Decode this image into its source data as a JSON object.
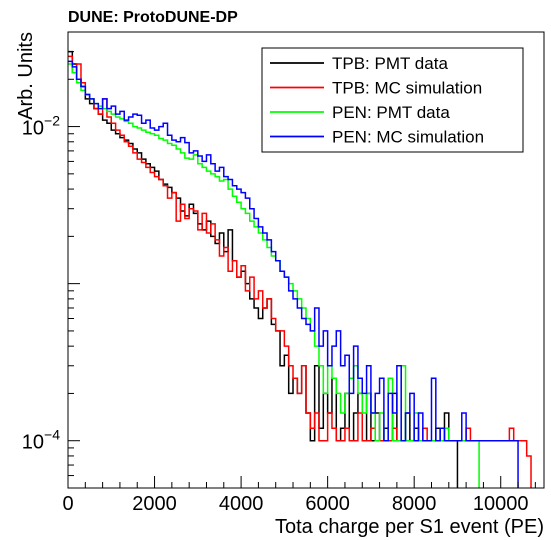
{
  "chart_data": {
    "type": "line",
    "title": "DUNE: ProtoDUNE-DP",
    "xlabel": "Tota charge per S1 event (PE)",
    "ylabel": "Arb. Units",
    "xlim": [
      0,
      11000
    ],
    "ylim": [
      5e-05,
      0.04
    ],
    "y_scale": "log",
    "x_ticks": [
      0,
      2000,
      4000,
      6000,
      8000,
      10000
    ],
    "x_tick_labels": [
      "0",
      "2000",
      "4000",
      "6000",
      "8000",
      "10000"
    ],
    "y_ticks": [
      0.0001,
      0.01
    ],
    "y_tick_labels": [
      {
        "base": "10",
        "exp": "−4"
      },
      {
        "base": "10",
        "exp": "−2"
      }
    ],
    "grid": false,
    "legend_position": "top-right",
    "bin_width": 100,
    "series": [
      {
        "name": "TPB: PMT data",
        "color": "#000000",
        "x": [
          0,
          100,
          200,
          300,
          400,
          500,
          600,
          700,
          800,
          900,
          1000,
          1100,
          1200,
          1300,
          1400,
          1500,
          1600,
          1700,
          1800,
          1900,
          2000,
          2100,
          2200,
          2300,
          2400,
          2500,
          2600,
          2700,
          2800,
          2900,
          3000,
          3100,
          3200,
          3300,
          3400,
          3500,
          3600,
          3700,
          3800,
          3900,
          4000,
          4100,
          4200,
          4300,
          4400,
          4500,
          4600,
          4700,
          4800,
          4900,
          5000,
          5100,
          5200,
          5300,
          5400,
          5500,
          5600,
          5700,
          5800,
          5900,
          6000,
          6100,
          6200,
          6300,
          6400,
          6500,
          6600,
          6700,
          6800,
          6900,
          7000,
          7100,
          7200,
          7300,
          7400,
          7500,
          7600,
          7700,
          7800,
          7900,
          8000,
          8100,
          8200,
          8300,
          8400,
          8500,
          8600,
          8700,
          8800,
          8900
        ],
        "y": [
          0.03,
          0.025,
          0.02,
          0.018,
          0.015,
          0.014,
          0.013,
          0.012,
          0.011,
          0.0105,
          0.0095,
          0.009,
          0.0085,
          0.0082,
          0.0078,
          0.0072,
          0.0068,
          0.0062,
          0.0058,
          0.0055,
          0.0052,
          0.0046,
          0.0043,
          0.0041,
          0.0038,
          0.0035,
          0.0029,
          0.0027,
          0.0032,
          0.0028,
          0.0024,
          0.0022,
          0.0025,
          0.002,
          0.0018,
          0.0021,
          0.0016,
          0.0022,
          0.0014,
          0.0011,
          0.0012,
          0.001,
          0.0008,
          0.0007,
          0.0006,
          0.0007,
          0.0008,
          0.00055,
          0.0005,
          0.0003,
          0.00035,
          0.0002,
          0.00025,
          0.0002,
          0.0003,
          0.00015,
          0.0001,
          0.0003,
          0.00012,
          0.0002,
          0.00015,
          0.00025,
          0.0001,
          0.00012,
          0.0002,
          0.0001,
          0.00015,
          0.0002,
          0.0001,
          0.0002,
          0.0001,
          0.00015,
          0.0001,
          0.00012,
          0.0001,
          0.0002,
          0.0001,
          0.0001,
          0.00015,
          0.0001,
          0.00012,
          0.0001,
          0.0001,
          0.0001,
          0.0001,
          0.00012,
          0.0001,
          0.00015,
          0.0001,
          0.0001
        ]
      },
      {
        "name": "TPB: MC simulation",
        "color": "#ff0000",
        "x": [
          0,
          100,
          200,
          300,
          400,
          500,
          600,
          700,
          800,
          900,
          1000,
          1100,
          1200,
          1300,
          1400,
          1500,
          1600,
          1700,
          1800,
          1900,
          2000,
          2100,
          2200,
          2300,
          2400,
          2500,
          2600,
          2700,
          2800,
          2900,
          3000,
          3100,
          3200,
          3300,
          3400,
          3500,
          3600,
          3700,
          3800,
          3900,
          4000,
          4100,
          4200,
          4300,
          4400,
          4500,
          4600,
          4700,
          4800,
          4900,
          5000,
          5100,
          5200,
          5300,
          5400,
          5500,
          5600,
          5700,
          5800,
          5900,
          6000,
          6100,
          6200,
          6300,
          6400,
          6500,
          6600,
          6700,
          6800,
          6900,
          7000,
          7100,
          7200,
          7300,
          7400,
          7500,
          7600,
          7700,
          7800,
          7900,
          8000,
          8100,
          8200,
          8300,
          8400,
          8500,
          8600,
          8700,
          8800,
          8900,
          9000,
          9100,
          9200,
          9300,
          9400,
          9500,
          9600,
          9700,
          9800,
          9900,
          10000,
          10100,
          10200,
          10300,
          10400,
          10500,
          10600
        ],
        "y": [
          0.028,
          0.022,
          0.025,
          0.019,
          0.016,
          0.015,
          0.013,
          0.012,
          0.015,
          0.0115,
          0.0105,
          0.0095,
          0.0088,
          0.008,
          0.0075,
          0.0068,
          0.0062,
          0.0059,
          0.0055,
          0.0051,
          0.0048,
          0.0046,
          0.0042,
          0.0035,
          0.0038,
          0.0025,
          0.0032,
          0.0026,
          0.003,
          0.0029,
          0.0022,
          0.0028,
          0.0021,
          0.0024,
          0.0019,
          0.0015,
          0.0017,
          0.0012,
          0.0014,
          0.0011,
          0.0013,
          0.0009,
          0.0011,
          0.0008,
          0.0009,
          0.0007,
          0.0008,
          0.0006,
          0.0005,
          0.0005,
          0.0004,
          0.0003,
          0.00025,
          0.0002,
          0.0003,
          0.00015,
          0.00012,
          0.00015,
          0.0001,
          0.0001,
          0.00015,
          0.00012,
          0.0001,
          0.0001,
          0.00012,
          0.0001,
          0.0001,
          0.00015,
          0.0001,
          0.0001,
          0.00012,
          0.0001,
          0.0001,
          0.0001,
          0.0001,
          0.00012,
          0.0001,
          0.0001,
          0.0001,
          0.0001,
          0.0001,
          0.0001,
          0.00012,
          0.0001,
          0.0001,
          0.0001,
          0.0001,
          0.0001,
          0.0001,
          0.0001,
          0.0001,
          0.0001,
          0.00012,
          0.0001,
          0.0001,
          0.0001,
          0.0001,
          0.0001,
          0.0001,
          0.0001,
          0.0001,
          0.0001,
          0.00012,
          0.0001,
          0.0001,
          0.0001,
          8e-05
        ]
      },
      {
        "name": "PEN: PMT data",
        "color": "#00ff00",
        "x": [
          0,
          100,
          200,
          300,
          400,
          500,
          600,
          700,
          800,
          900,
          1000,
          1100,
          1200,
          1300,
          1400,
          1500,
          1600,
          1700,
          1800,
          1900,
          2000,
          2100,
          2200,
          2300,
          2400,
          2500,
          2600,
          2700,
          2800,
          2900,
          3000,
          3100,
          3200,
          3300,
          3400,
          3500,
          3600,
          3700,
          3800,
          3900,
          4000,
          4100,
          4200,
          4300,
          4400,
          4500,
          4600,
          4700,
          4800,
          4900,
          5000,
          5100,
          5200,
          5300,
          5400,
          5500,
          5600,
          5700,
          5800,
          5900,
          6000,
          6100,
          6200,
          6300,
          6400,
          6500,
          6600,
          6700,
          6800,
          6900,
          7000,
          7100,
          7200,
          7300,
          7400,
          7500,
          7600,
          7700,
          7800,
          7900,
          8000,
          8100,
          8200,
          8300,
          8400,
          8500,
          8600,
          8700,
          8800,
          8900,
          9000,
          9100,
          9200,
          9300,
          9400
        ],
        "y": [
          0.025,
          0.022,
          0.019,
          0.017,
          0.016,
          0.015,
          0.014,
          0.0135,
          0.013,
          0.0125,
          0.012,
          0.0115,
          0.0112,
          0.0108,
          0.0105,
          0.01,
          0.0098,
          0.0095,
          0.0092,
          0.009,
          0.0088,
          0.0084,
          0.0082,
          0.0078,
          0.0076,
          0.0072,
          0.0068,
          0.0063,
          0.0062,
          0.0066,
          0.0058,
          0.0055,
          0.0052,
          0.005,
          0.0048,
          0.0045,
          0.0046,
          0.004,
          0.0036,
          0.0033,
          0.003,
          0.0028,
          0.0025,
          0.0023,
          0.0021,
          0.0019,
          0.0017,
          0.0015,
          0.0014,
          0.0012,
          0.0011,
          0.001,
          0.0009,
          0.0008,
          0.0007,
          0.0006,
          0.0005,
          0.0004,
          0.0003,
          0.0002,
          0.0003,
          0.00025,
          0.0002,
          0.00015,
          0.0002,
          0.00025,
          0.0003,
          0.0002,
          0.00015,
          0.0002,
          0.00015,
          0.0001,
          0.00015,
          0.0001,
          0.00025,
          0.0001,
          0.0001,
          0.0003,
          0.0001,
          0.0001,
          0.00015,
          0.0001,
          0.0001,
          0.0001,
          0.0001,
          0.0001,
          0.0001,
          0.00012,
          0.0001,
          0.0001,
          0.0001,
          0.0001,
          0.0001,
          0.0001,
          0.0001
        ]
      },
      {
        "name": "PEN: MC simulation",
        "color": "#0000ff",
        "x": [
          0,
          100,
          200,
          300,
          400,
          500,
          600,
          700,
          800,
          900,
          1000,
          1100,
          1200,
          1300,
          1400,
          1500,
          1600,
          1700,
          1800,
          1900,
          2000,
          2100,
          2200,
          2300,
          2400,
          2500,
          2600,
          2700,
          2800,
          2900,
          3000,
          3100,
          3200,
          3300,
          3400,
          3500,
          3600,
          3700,
          3800,
          3900,
          4000,
          4100,
          4200,
          4300,
          4400,
          4500,
          4600,
          4700,
          4800,
          4900,
          5000,
          5100,
          5200,
          5300,
          5400,
          5500,
          5600,
          5700,
          5800,
          5900,
          6000,
          6100,
          6200,
          6300,
          6400,
          6500,
          6600,
          6700,
          6800,
          6900,
          7000,
          7100,
          7200,
          7300,
          7400,
          7500,
          7600,
          7700,
          7800,
          7900,
          8000,
          8100,
          8200,
          8300,
          8400,
          8500,
          8600,
          8700,
          8800,
          8900,
          9000,
          9100,
          9200,
          9300,
          9400,
          9500,
          9600,
          9700,
          9800,
          9900,
          10000,
          10100,
          10200,
          10300
        ],
        "y": [
          0.026,
          0.024,
          0.02,
          0.018,
          0.016,
          0.015,
          0.014,
          0.013,
          0.015,
          0.013,
          0.0135,
          0.012,
          0.0125,
          0.011,
          0.0115,
          0.012,
          0.0118,
          0.0105,
          0.011,
          0.0098,
          0.0095,
          0.01,
          0.0105,
          0.0088,
          0.0082,
          0.008,
          0.0085,
          0.0079,
          0.0068,
          0.007,
          0.0065,
          0.006,
          0.0066,
          0.0058,
          0.0052,
          0.0055,
          0.0048,
          0.0046,
          0.0042,
          0.004,
          0.0038,
          0.0035,
          0.003,
          0.0026,
          0.0023,
          0.0021,
          0.0019,
          0.0016,
          0.0014,
          0.0012,
          0.0011,
          0.0009,
          0.0008,
          0.0007,
          0.0006,
          0.00055,
          0.0005,
          0.0007,
          0.0004,
          0.0005,
          0.0003,
          0.0004,
          0.0005,
          0.0003,
          0.00035,
          0.0002,
          0.0004,
          0.00025,
          0.0002,
          0.0003,
          0.00015,
          0.0002,
          0.00025,
          0.0001,
          0.0002,
          0.00015,
          0.0003,
          0.0001,
          0.00015,
          0.0002,
          0.0001,
          0.00015,
          0.0001,
          0.0001,
          0.00025,
          0.0001,
          0.00012,
          0.0001,
          0.0001,
          0.0001,
          0.0001,
          0.00015,
          0.0001,
          0.0001,
          0.0001,
          0.0001,
          0.0001,
          0.0001,
          0.0001,
          0.0001,
          0.0001,
          0.0001,
          0.0001,
          0.0001
        ]
      }
    ]
  }
}
